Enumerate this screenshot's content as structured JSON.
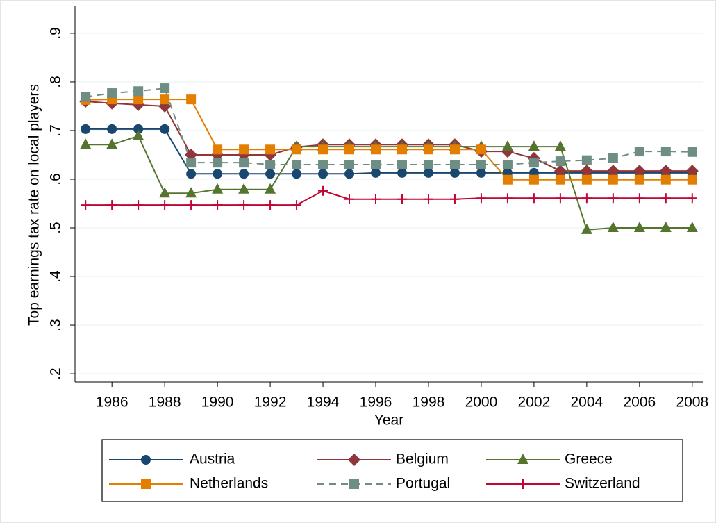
{
  "chart_data": {
    "type": "line",
    "x_label": "Year",
    "y_label": "Top earnings tax rate on local players",
    "x": [
      1985,
      1986,
      1987,
      1988,
      1989,
      1990,
      1991,
      1992,
      1993,
      1994,
      1995,
      1996,
      1997,
      1998,
      1999,
      2000,
      2001,
      2002,
      2003,
      2004,
      2005,
      2006,
      2007,
      2008
    ],
    "xlim": [
      1984.6,
      2008.4
    ],
    "xticks": [
      1986,
      1988,
      1990,
      1992,
      1994,
      1996,
      1998,
      2000,
      2002,
      2004,
      2006,
      2008
    ],
    "ylim": [
      0.183,
      0.957
    ],
    "yticks": [
      {
        "value": 0.2,
        "label": ".2"
      },
      {
        "value": 0.3,
        "label": ".3"
      },
      {
        "value": 0.4,
        "label": ".4"
      },
      {
        "value": 0.5,
        "label": ".5"
      },
      {
        "value": 0.6,
        "label": ".6"
      },
      {
        "value": 0.7,
        "label": ".7"
      },
      {
        "value": 0.8,
        "label": ".8"
      },
      {
        "value": 0.9,
        "label": ".9"
      }
    ],
    "grid": true,
    "legend": "bottom",
    "series": [
      {
        "name": "Austria",
        "color": "#1a476f",
        "marker": "circle",
        "dash": false,
        "values": [
          0.703,
          0.703,
          0.703,
          0.703,
          0.611,
          0.611,
          0.611,
          0.611,
          0.611,
          0.611,
          0.611,
          0.613,
          0.613,
          0.613,
          0.613,
          0.613,
          0.613,
          0.613,
          0.613,
          0.613,
          0.613,
          0.613,
          0.613,
          0.613
        ]
      },
      {
        "name": "Belgium",
        "color": "#90353b",
        "marker": "diamond",
        "dash": false,
        "values": [
          0.76,
          0.756,
          0.753,
          0.75,
          0.65,
          0.65,
          0.65,
          0.65,
          0.666,
          0.671,
          0.671,
          0.671,
          0.671,
          0.671,
          0.671,
          0.657,
          0.657,
          0.643,
          0.617,
          0.617,
          0.617,
          0.617,
          0.617,
          0.617
        ]
      },
      {
        "name": "Greece",
        "color": "#55752f",
        "marker": "triangle",
        "dash": false,
        "values": [
          0.671,
          0.671,
          0.689,
          0.571,
          0.571,
          0.579,
          0.579,
          0.579,
          0.667,
          0.667,
          0.667,
          0.667,
          0.667,
          0.667,
          0.667,
          0.667,
          0.667,
          0.667,
          0.667,
          0.496,
          0.5,
          0.5,
          0.5,
          0.5
        ]
      },
      {
        "name": "Netherlands",
        "color": "#e37e00",
        "marker": "square",
        "dash": false,
        "values": [
          0.763,
          0.764,
          0.764,
          0.764,
          0.764,
          0.661,
          0.661,
          0.661,
          0.661,
          0.661,
          0.661,
          0.661,
          0.661,
          0.661,
          0.661,
          0.661,
          0.599,
          0.599,
          0.599,
          0.599,
          0.599,
          0.599,
          0.599,
          0.599
        ]
      },
      {
        "name": "Portugal",
        "color": "#6e8e84",
        "marker": "square",
        "dash": true,
        "values": [
          0.769,
          0.777,
          0.781,
          0.787,
          0.634,
          0.634,
          0.634,
          0.63,
          0.63,
          0.63,
          0.63,
          0.63,
          0.63,
          0.63,
          0.63,
          0.63,
          0.63,
          0.634,
          0.637,
          0.639,
          0.643,
          0.657,
          0.657,
          0.656
        ]
      },
      {
        "name": "Switzerland",
        "color": "#c10534",
        "marker": "plus",
        "dash": false,
        "values": [
          0.547,
          0.547,
          0.547,
          0.547,
          0.547,
          0.547,
          0.547,
          0.547,
          0.547,
          0.576,
          0.559,
          0.559,
          0.559,
          0.559,
          0.559,
          0.561,
          0.561,
          0.561,
          0.561,
          0.561,
          0.561,
          0.561,
          0.561,
          0.561
        ]
      }
    ]
  }
}
